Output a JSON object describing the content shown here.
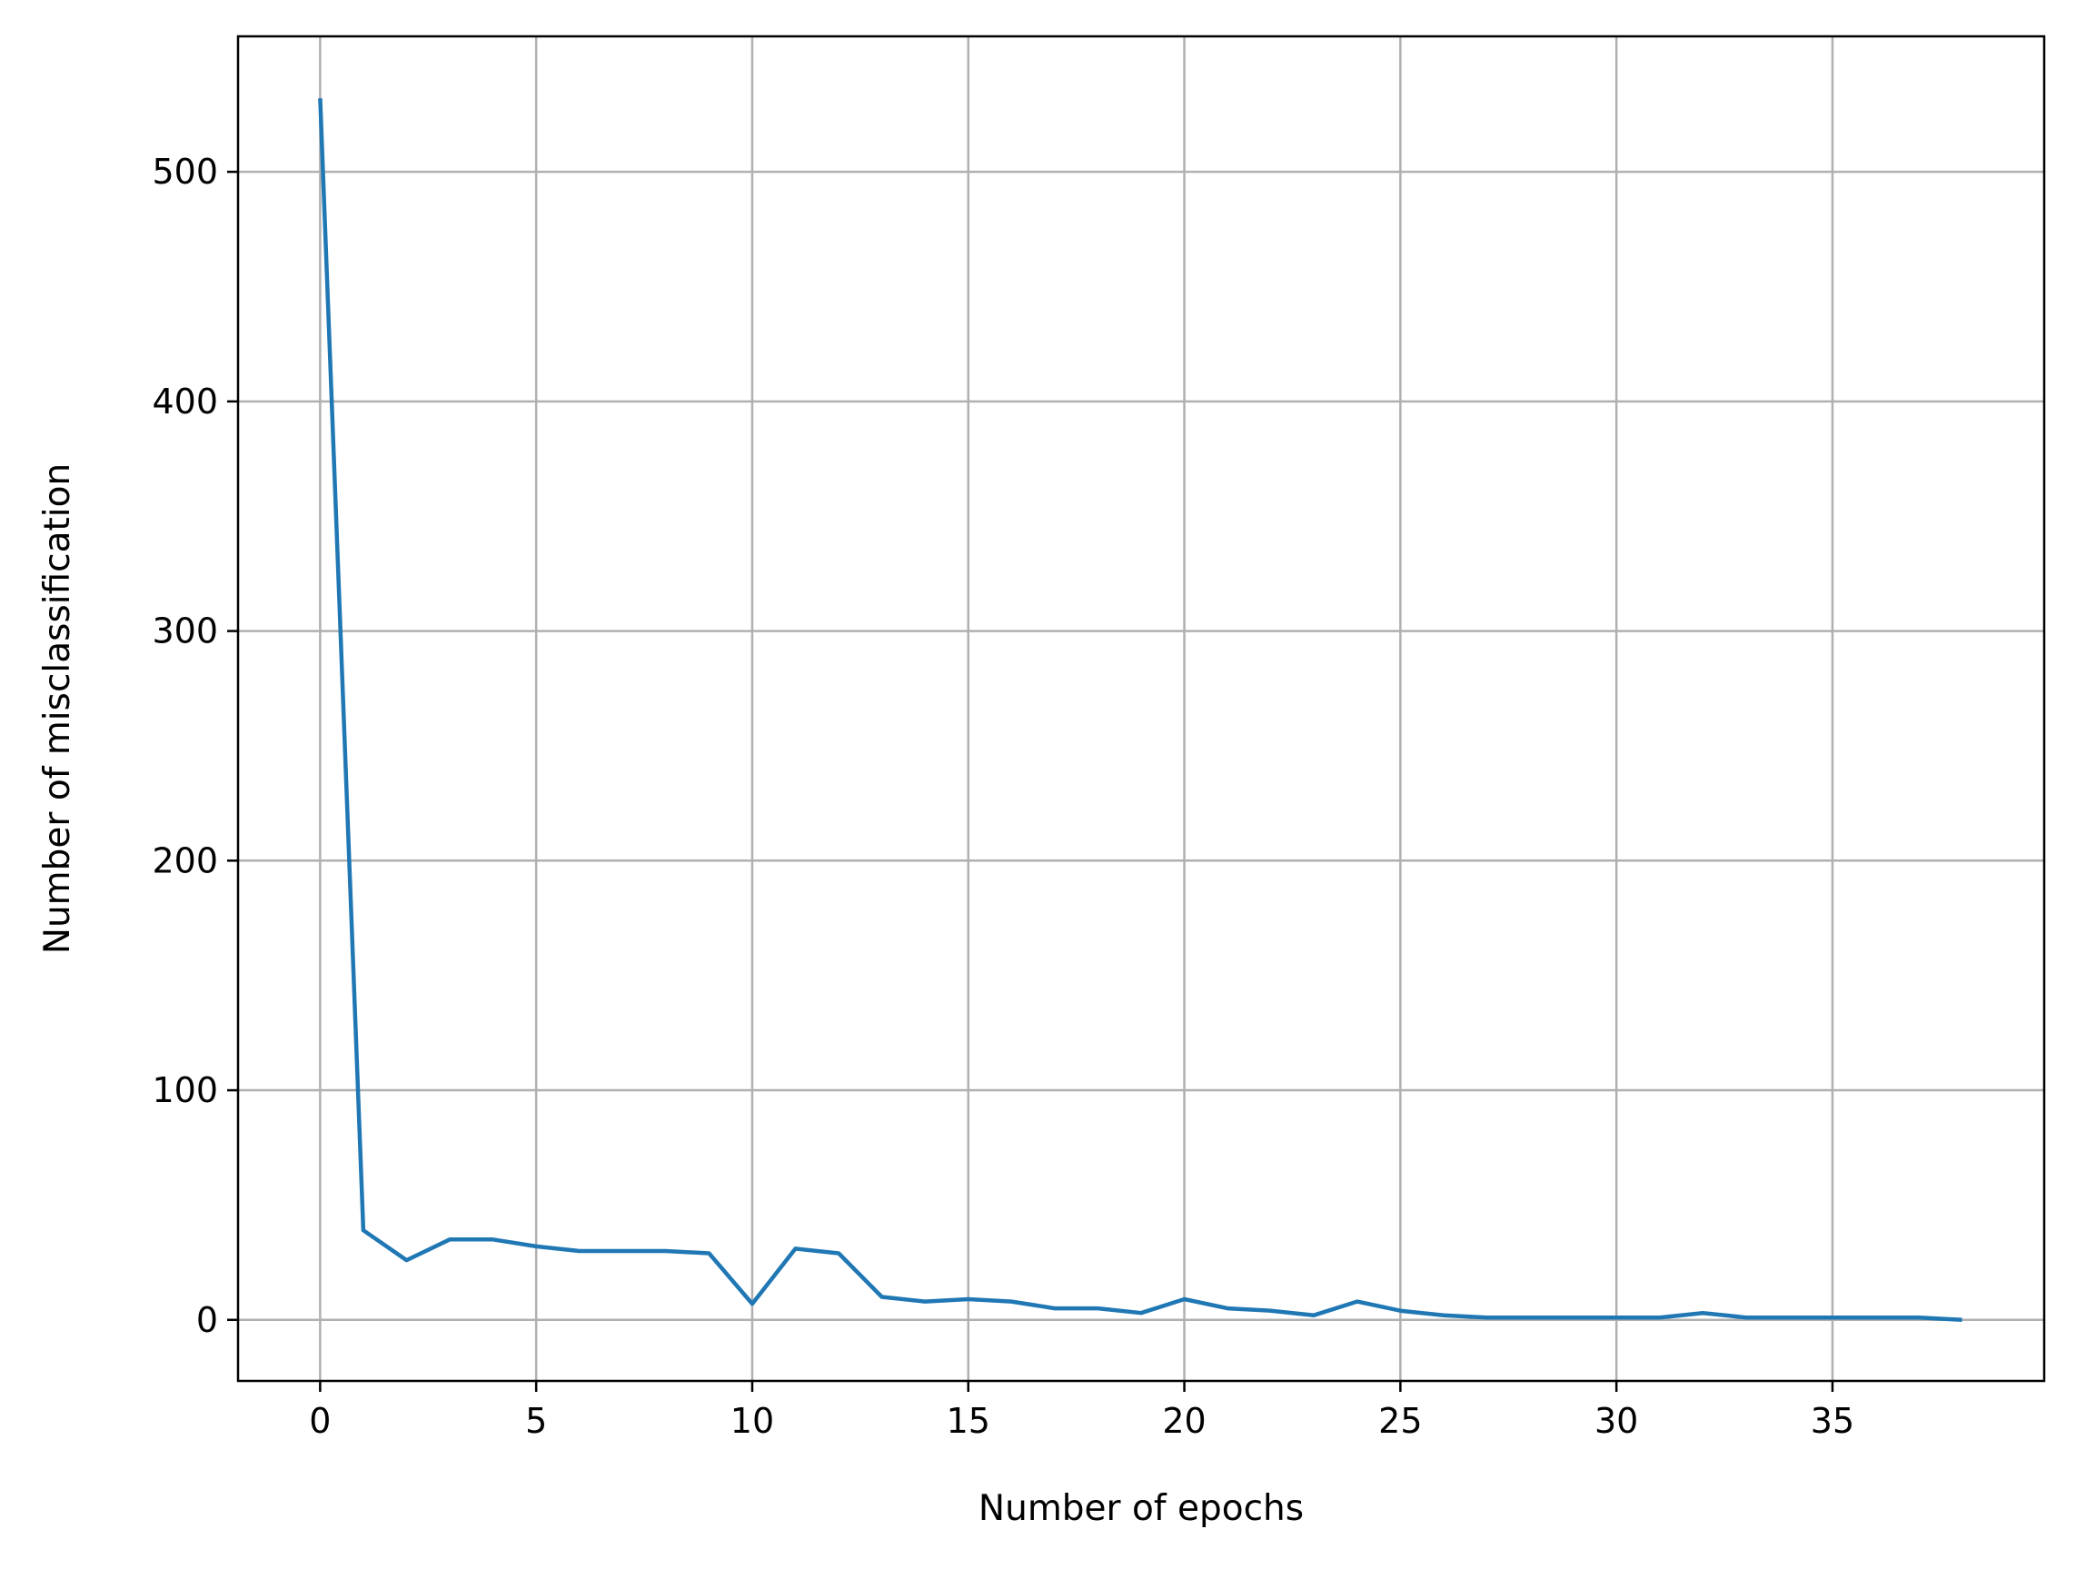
{
  "chart_data": {
    "type": "line",
    "title": "",
    "xlabel": "Number of epochs",
    "ylabel": "Number of misclassification",
    "xlim": [
      -1.9,
      39.9
    ],
    "ylim": [
      -26.6,
      559
    ],
    "xticks": [
      0,
      5,
      10,
      15,
      20,
      25,
      30,
      35
    ],
    "yticks": [
      0,
      100,
      200,
      300,
      400,
      500
    ],
    "xtick_labels": [
      "0",
      "5",
      "10",
      "15",
      "20",
      "25",
      "30",
      "35"
    ],
    "ytick_labels": [
      "0",
      "100",
      "200",
      "300",
      "400",
      "500"
    ],
    "grid": true,
    "legend": "none",
    "series": [
      {
        "color": "#1f77b4",
        "x": [
          0,
          1,
          2,
          3,
          4,
          5,
          6,
          7,
          8,
          9,
          10,
          11,
          12,
          13,
          14,
          15,
          16,
          17,
          18,
          19,
          20,
          21,
          22,
          23,
          24,
          25,
          26,
          27,
          28,
          29,
          30,
          31,
          32,
          33,
          34,
          35,
          36,
          37,
          38
        ],
        "values": [
          532,
          39,
          26,
          35,
          35,
          32,
          30,
          30,
          30,
          29,
          7,
          31,
          29,
          10,
          8,
          9,
          8,
          5,
          5,
          3,
          9,
          5,
          4,
          2,
          8,
          4,
          2,
          1,
          1,
          1,
          1,
          1,
          3,
          1,
          1,
          1,
          1,
          1,
          0
        ]
      }
    ]
  }
}
